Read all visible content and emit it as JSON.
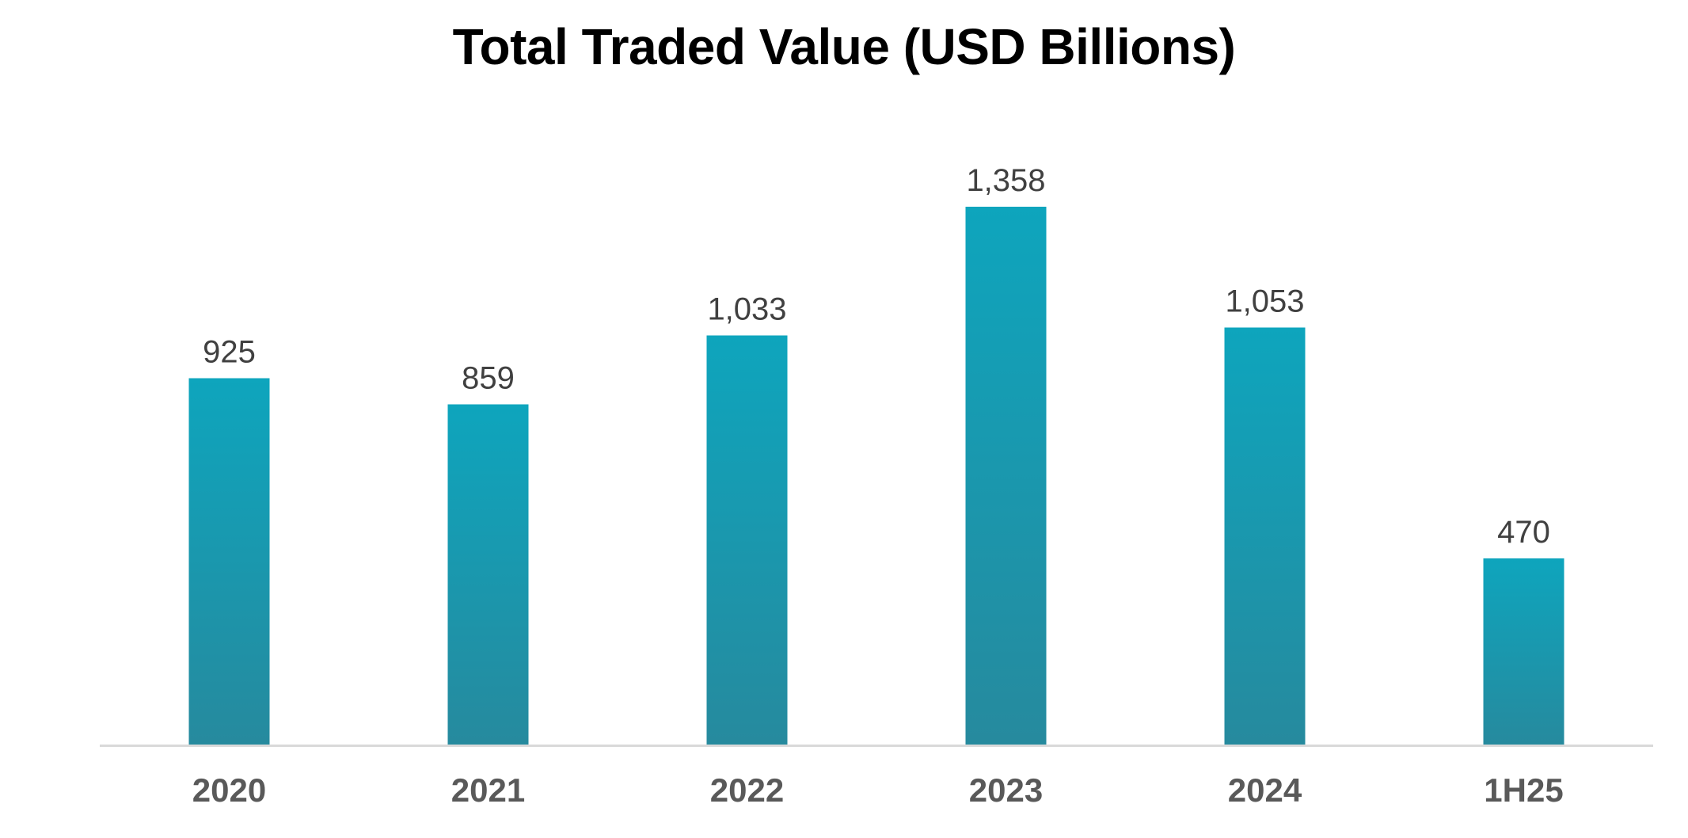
{
  "chart_data": {
    "type": "bar",
    "title": "Total Traded Value (USD Billions)",
    "categories": [
      "2020",
      "2021",
      "2022",
      "2023",
      "2024",
      "1H25"
    ],
    "values": [
      925,
      859,
      1033,
      1358,
      1053,
      470
    ],
    "value_labels": [
      "925",
      "859",
      "1,033",
      "1,358",
      "1,053",
      "470"
    ],
    "xlabel": "",
    "ylabel": "",
    "ylim": [
      0,
      1358
    ],
    "grid": false,
    "legend": "none",
    "colors": {
      "bar_top": "#0ea5bd",
      "bar_bottom": "#268a9e",
      "axis": "#d9d9d9",
      "data_label": "#404040",
      "tick_label": "#595959"
    }
  }
}
